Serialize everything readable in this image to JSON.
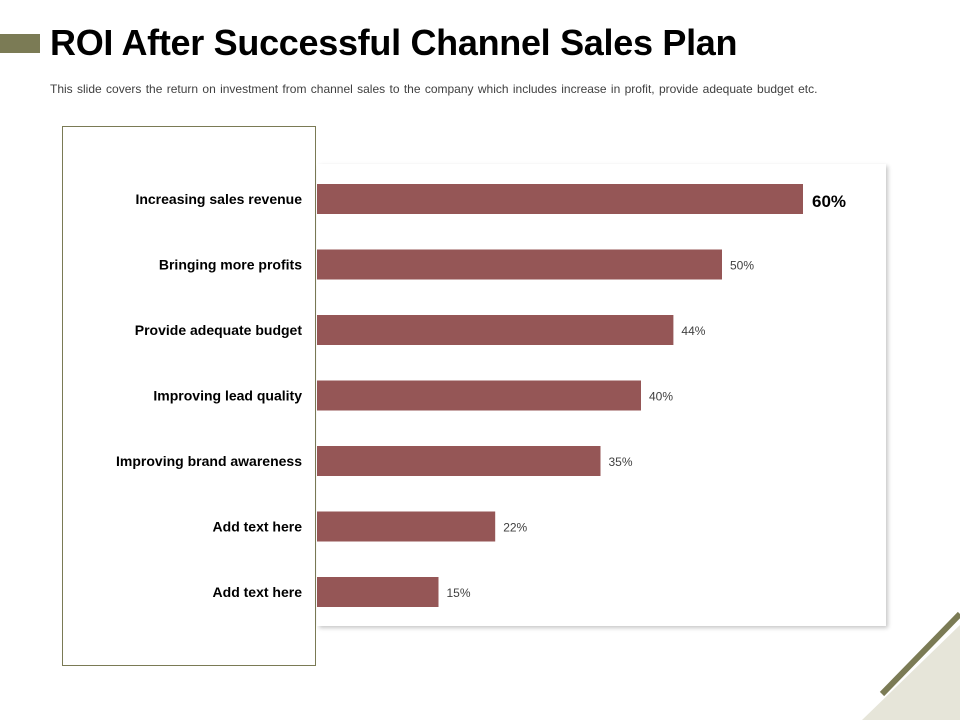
{
  "slide": {
    "title": "ROI After Successful Channel Sales Plan",
    "subtitle": "This slide covers the return on investment from channel sales to the company which includes increase in profit, provide  adequate  budget  etc."
  },
  "colors": {
    "bar": "#955656",
    "accent": "#7b7b55",
    "corner_fill": "#e6e5d9",
    "corner_line": "#7b7b55"
  },
  "chart_data": {
    "type": "bar",
    "orientation": "horizontal",
    "categories": [
      "Increasing sales revenue",
      "Bringing more profits",
      "Provide adequate budget",
      "Improving lead quality",
      "Improving brand awareness",
      "Add text here",
      "Add text here"
    ],
    "values": [
      60,
      50,
      44,
      40,
      35,
      22,
      15
    ],
    "value_labels": [
      "60%",
      "50%",
      "44%",
      "40%",
      "35%",
      "22%",
      "15%"
    ],
    "highlight_index": 0,
    "xlim": [
      0,
      60
    ],
    "grid": false,
    "legend": "none"
  }
}
